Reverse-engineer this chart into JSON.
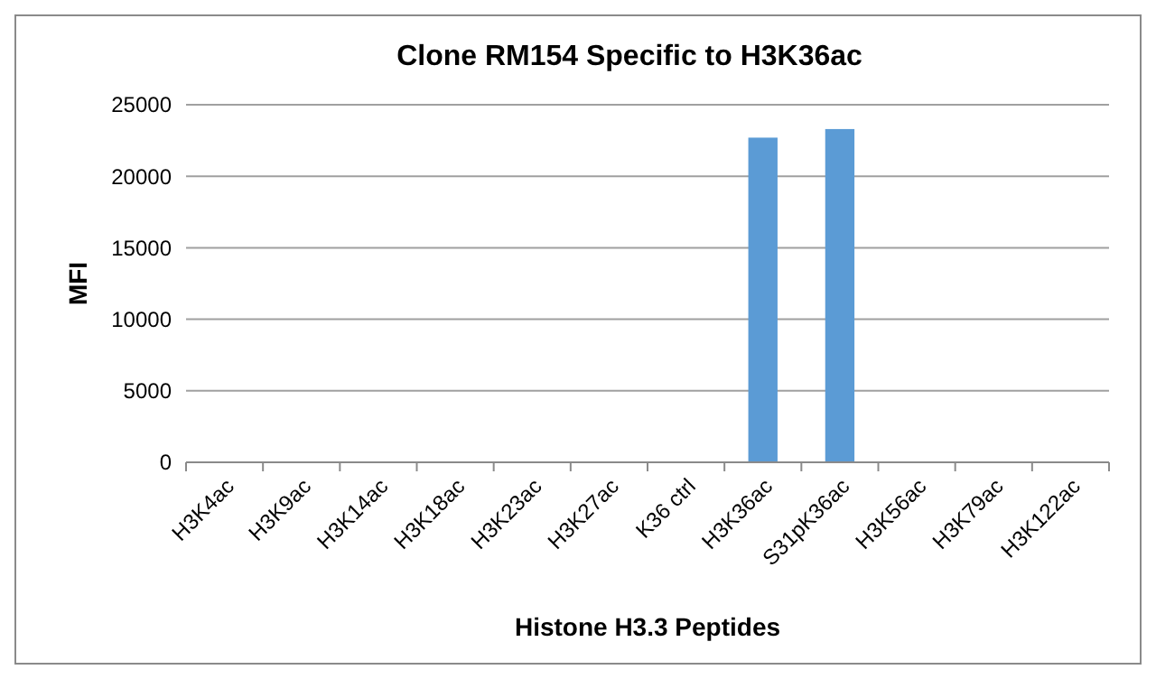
{
  "chart_data": {
    "type": "bar",
    "title": "Clone RM154 Specific to H3K36ac",
    "xlabel": "Histone H3.3 Peptides",
    "ylabel": "MFI",
    "categories": [
      "H3K4ac",
      "H3K9ac",
      "H3K14ac",
      "H3K18ac",
      "H3K23ac",
      "H3K27ac",
      "K36 ctrl",
      "H3K36ac",
      "S31pK36ac",
      "H3K56ac",
      "H3K79ac",
      "H3K122ac"
    ],
    "values": [
      0,
      0,
      0,
      0,
      0,
      0,
      0,
      22700,
      23300,
      0,
      0,
      0
    ],
    "color": "#5b9bd5",
    "ylim": [
      0,
      25000
    ],
    "yticks": [
      0,
      5000,
      10000,
      15000,
      20000,
      25000
    ],
    "grid": "y"
  }
}
